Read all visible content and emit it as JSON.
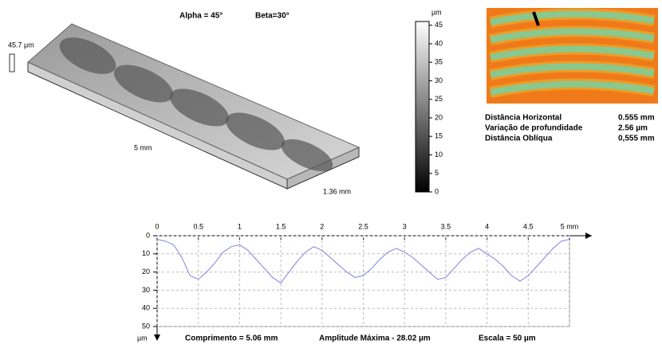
{
  "view3d": {
    "title_alpha": "Alpha = 45°",
    "title_beta": "Beta=30°",
    "height_label": "45.7 µm",
    "length_label": "5 mm",
    "width_label": "1.36 mm"
  },
  "colorbar": {
    "unit": "µm",
    "lim": [
      0,
      46
    ],
    "ticks": [
      0,
      5,
      10,
      15,
      20,
      25,
      30,
      35,
      40,
      45
    ]
  },
  "measurements": [
    {
      "label": "Distância Horizontal",
      "value": "0.555 mm"
    },
    {
      "label": "Variação de profundidade",
      "value": "2.56  µm"
    },
    {
      "label": "Distância Oblíqua",
      "value": "0,555 mm"
    }
  ],
  "chart_data": {
    "type": "line",
    "y_unit": "µm",
    "footer": [
      "Comprimento = 5.06 mm",
      "Amplitude Máxima - 28.02  µm",
      "Escala = 50  µm"
    ],
    "xlim": [
      0,
      5
    ],
    "xticks": [
      0,
      0.5,
      1,
      1.5,
      2,
      2.5,
      3,
      3.5,
      4,
      4.5,
      {
        "value": 5,
        "label": "5 mm"
      }
    ],
    "ylim": [
      50,
      0
    ],
    "yticks": [
      0,
      10,
      20,
      30,
      40,
      50
    ],
    "grid": true,
    "series": [
      {
        "color": "#8080e0",
        "x": [
          0,
          0.1,
          0.2,
          0.3,
          0.4,
          0.5,
          0.6,
          0.7,
          0.8,
          0.9,
          1,
          1.1,
          1.2,
          1.3,
          1.4,
          1.5,
          1.6,
          1.7,
          1.8,
          1.9,
          2,
          2.1,
          2.2,
          2.3,
          2.4,
          2.5,
          2.6,
          2.7,
          2.8,
          2.9,
          3,
          3.1,
          3.2,
          3.3,
          3.4,
          3.5,
          3.6,
          3.7,
          3.8,
          3.9,
          4,
          4.1,
          4.2,
          4.3,
          4.4,
          4.5,
          4.6,
          4.7,
          4.8,
          4.9,
          5
        ],
        "values": [
          2,
          3,
          5,
          12,
          22,
          24,
          20,
          15,
          9,
          6,
          5,
          8,
          13,
          18,
          23,
          26,
          20,
          14,
          9,
          6,
          8,
          12,
          16,
          20,
          23,
          22,
          18,
          13,
          9,
          7,
          9,
          12,
          16,
          20,
          24,
          23,
          18,
          13,
          9,
          7,
          10,
          13,
          17,
          22,
          25,
          22,
          17,
          12,
          7,
          3,
          2
        ]
      }
    ]
  }
}
